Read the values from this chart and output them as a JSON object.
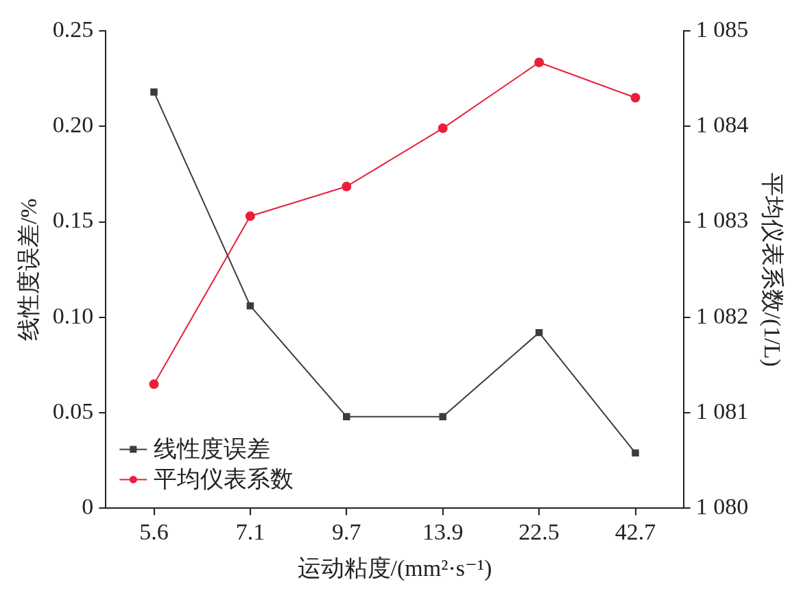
{
  "chart_data": {
    "type": "line",
    "xlabel": "运动粘度/(mm²·s⁻¹)",
    "ylabel": "线性度误差/%",
    "y2label": "平均仪表系数/(1/L)",
    "categories": [
      "5.6",
      "7.1",
      "9.7",
      "13.9",
      "22.5",
      "42.7"
    ],
    "series": [
      {
        "name": "线性度误差",
        "color": "#3c3c3c",
        "marker": "square",
        "values": [
          0.218,
          0.106,
          0.048,
          0.048,
          0.092,
          0.029
        ]
      },
      {
        "name": "平均仪表系数",
        "color": "#e8203a",
        "marker": "circle",
        "axis": "y2",
        "values": [
          1081.3,
          1083.06,
          1083.37,
          1083.98,
          1084.67,
          1084.3
        ]
      }
    ],
    "ylim": [
      0,
      0.25
    ],
    "yticks": [
      {
        "value": 0,
        "label": "0"
      },
      {
        "value": 0.05,
        "label": "0.05"
      },
      {
        "value": 0.1,
        "label": "0.10"
      },
      {
        "value": 0.15,
        "label": "0.15"
      },
      {
        "value": 0.2,
        "label": "0.20"
      },
      {
        "value": 0.25,
        "label": "0.25"
      }
    ],
    "y2lim": [
      1080,
      1085
    ],
    "y2ticks": [
      {
        "value": 1080,
        "label": "1 080"
      },
      {
        "value": 1081,
        "label": "1 081"
      },
      {
        "value": 1082,
        "label": "1 082"
      },
      {
        "value": 1083,
        "label": "1 083"
      },
      {
        "value": 1084,
        "label": "1 084"
      },
      {
        "value": 1085,
        "label": "1 085"
      }
    ],
    "legend": "bottom left",
    "grid": false,
    "line_style": "solid"
  }
}
